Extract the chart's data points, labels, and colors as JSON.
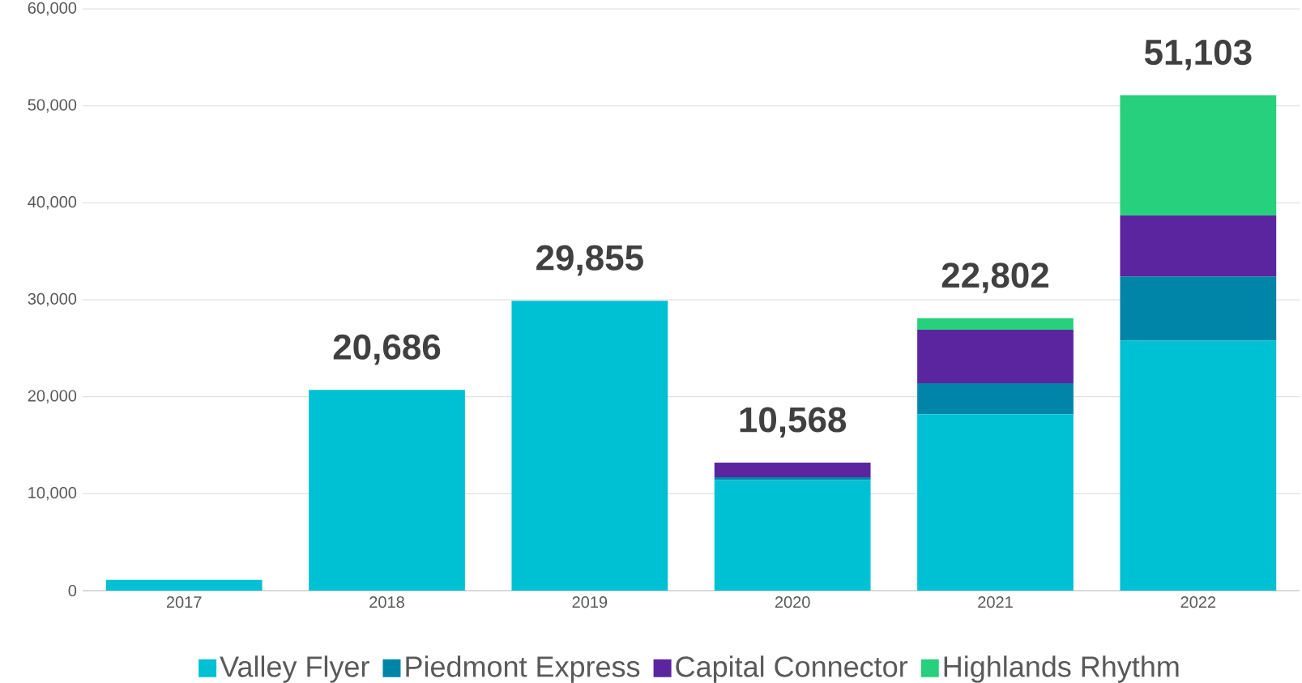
{
  "chart_data": {
    "type": "bar",
    "stacked": true,
    "categories": [
      "2017",
      "2018",
      "2019",
      "2020",
      "2021",
      "2022"
    ],
    "series": [
      {
        "name": "Valley Flyer",
        "color": "#00c0d4",
        "values": [
          1100,
          20700,
          29900,
          11400,
          18200,
          25800
        ]
      },
      {
        "name": "Piedmont Express",
        "color": "#0085a8",
        "values": [
          null,
          null,
          null,
          300,
          3200,
          6600
        ]
      },
      {
        "name": "Capital Connector",
        "color": "#5c25a0",
        "values": [
          null,
          null,
          null,
          1500,
          5500,
          6300
        ]
      },
      {
        "name": "Highlands Rhythm",
        "color": "#26d07c",
        "values": [
          null,
          null,
          null,
          null,
          1200,
          12400
        ]
      }
    ],
    "annotations": [
      "20,686",
      "29,855",
      "10,568",
      "22,802",
      "51,103"
    ],
    "ylim": [
      0,
      60000
    ],
    "yticks": [
      {
        "value": 0,
        "label": "0"
      },
      {
        "value": 10000,
        "label": "10,000"
      },
      {
        "value": 20000,
        "label": "20,000"
      },
      {
        "value": 30000,
        "label": "30,000"
      },
      {
        "value": 40000,
        "label": "40,000"
      },
      {
        "value": 50000,
        "label": "50,000"
      },
      {
        "value": 60000,
        "label": "60,000"
      }
    ],
    "grid": "y",
    "legend": "bottom"
  }
}
